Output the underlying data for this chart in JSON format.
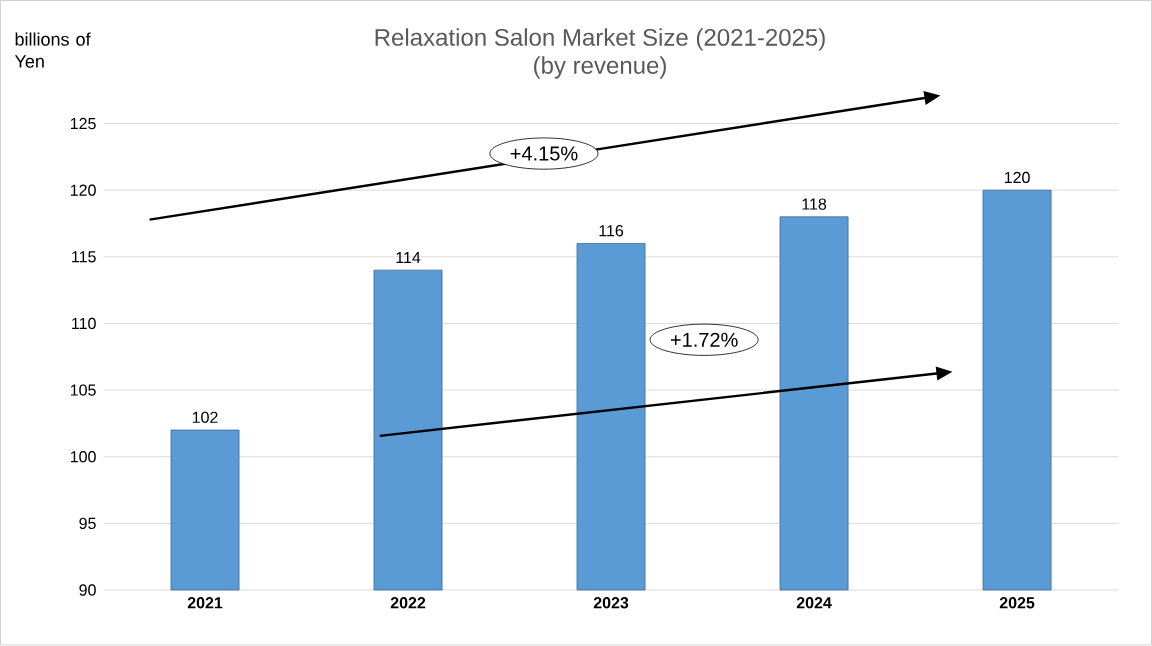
{
  "chart_data": {
    "type": "bar",
    "title": "Relaxation Salon Market Size (2021-2025)",
    "subtitle": "(by revenue)",
    "ylabel": "billions of Yen",
    "categories": [
      "2021",
      "2022",
      "2023",
      "2024",
      "2025"
    ],
    "values": [
      102,
      114,
      116,
      118,
      120
    ],
    "color": "#5b9bd5",
    "data_labels": true,
    "ylim": [
      90,
      125
    ],
    "yticks": [
      90,
      95,
      100,
      105,
      110,
      115,
      120,
      125
    ],
    "grid": "y",
    "annotations": [
      "+4.15%",
      "+1.72%"
    ]
  }
}
